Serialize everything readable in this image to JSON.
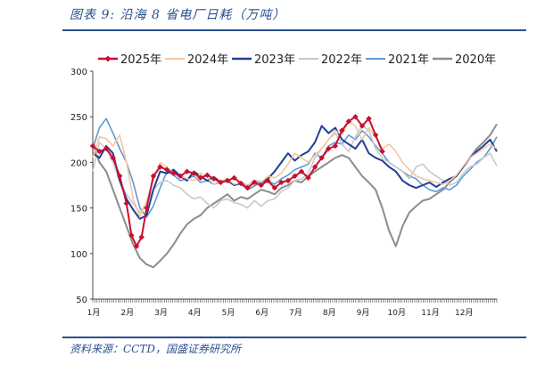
{
  "title": "图表 9:  沿海 8 省电厂日耗（万吨）",
  "source": "资料来源：CCTD，国盛证券研究所",
  "chart_data": {
    "type": "line",
    "title": "沿海 8 省电厂日耗（万吨）",
    "xlabel": "",
    "ylabel": "",
    "x_ticks": [
      "1月",
      "2月",
      "3月",
      "4月",
      "5月",
      "6月",
      "7月",
      "8月",
      "9月",
      "10月",
      "11月",
      "12月"
    ],
    "xlim": [
      0,
      12
    ],
    "ylim": [
      50,
      300
    ],
    "y_ticks": [
      50,
      100,
      150,
      200,
      250,
      300
    ],
    "grid": false,
    "legend_position": "top",
    "series": [
      {
        "name": "2025年",
        "color": "#c8102e",
        "marker": "diamond",
        "width": 2,
        "x": [
          0.0,
          0.2,
          0.4,
          0.6,
          0.8,
          1.0,
          1.15,
          1.3,
          1.45,
          1.6,
          1.8,
          2.0,
          2.2,
          2.4,
          2.6,
          2.8,
          3.0,
          3.2,
          3.4,
          3.6,
          3.8,
          4.0,
          4.2,
          4.4,
          4.6,
          4.8,
          5.0,
          5.2,
          5.4,
          5.6,
          5.8,
          6.0,
          6.2,
          6.4,
          6.6,
          6.8,
          7.0,
          7.2,
          7.4,
          7.6,
          7.8,
          8.0,
          8.2,
          8.4,
          8.6
        ],
        "y": [
          218,
          212,
          215,
          205,
          185,
          155,
          120,
          108,
          118,
          150,
          185,
          195,
          192,
          188,
          185,
          190,
          188,
          183,
          186,
          182,
          178,
          180,
          183,
          177,
          172,
          178,
          175,
          180,
          172,
          178,
          180,
          185,
          190,
          183,
          195,
          205,
          215,
          218,
          235,
          245,
          250,
          240,
          248,
          230,
          212
        ]
      },
      {
        "name": "2024年",
        "color": "#f5c6a0",
        "marker": "",
        "width": 1.6,
        "x": [
          0.0,
          0.2,
          0.4,
          0.6,
          0.8,
          1.0,
          1.2,
          1.4,
          1.6,
          1.8,
          2.0,
          2.2,
          2.4,
          2.6,
          2.8,
          3.0,
          3.2,
          3.4,
          3.6,
          3.8,
          4.0,
          4.2,
          4.4,
          4.6,
          4.8,
          5.0,
          5.2,
          5.4,
          5.6,
          5.8,
          6.0,
          6.2,
          6.4,
          6.6,
          6.8,
          7.0,
          7.2,
          7.4,
          7.6,
          7.8,
          8.0,
          8.2,
          8.4,
          8.6,
          8.8,
          9.0,
          9.2,
          9.4,
          9.6,
          9.8,
          10.0,
          10.2,
          10.4,
          10.6,
          10.8,
          11.0,
          11.2,
          11.4,
          11.6,
          11.8,
          12.0
        ],
        "y": [
          205,
          228,
          226,
          218,
          230,
          200,
          160,
          140,
          158,
          180,
          200,
          195,
          188,
          185,
          182,
          180,
          188,
          184,
          176,
          180,
          182,
          176,
          178,
          174,
          180,
          178,
          185,
          183,
          188,
          198,
          210,
          205,
          200,
          208,
          215,
          225,
          235,
          230,
          245,
          240,
          225,
          238,
          228,
          215,
          220,
          212,
          200,
          192,
          185,
          182,
          180,
          178,
          176,
          180,
          186,
          196,
          205,
          210,
          215,
          220,
          215
        ]
      },
      {
        "name": "2023年",
        "color": "#1f3f99",
        "marker": "",
        "width": 2,
        "x": [
          0.0,
          0.2,
          0.4,
          0.6,
          0.8,
          1.0,
          1.2,
          1.4,
          1.6,
          1.8,
          2.0,
          2.2,
          2.4,
          2.6,
          2.8,
          3.0,
          3.2,
          3.4,
          3.6,
          3.8,
          4.0,
          4.2,
          4.4,
          4.6,
          4.8,
          5.0,
          5.2,
          5.4,
          5.6,
          5.8,
          6.0,
          6.2,
          6.4,
          6.6,
          6.8,
          7.0,
          7.2,
          7.4,
          7.6,
          7.8,
          8.0,
          8.2,
          8.4,
          8.6,
          8.8,
          9.0,
          9.2,
          9.4,
          9.6,
          9.8,
          10.0,
          10.2,
          10.4,
          10.6,
          10.8,
          11.0,
          11.2,
          11.4,
          11.6,
          11.8,
          12.0
        ],
        "y": [
          210,
          205,
          218,
          210,
          180,
          160,
          148,
          138,
          142,
          170,
          190,
          188,
          192,
          185,
          180,
          190,
          185,
          180,
          184,
          178,
          180,
          175,
          178,
          174,
          180,
          178,
          182,
          190,
          200,
          210,
          202,
          208,
          212,
          222,
          240,
          232,
          238,
          225,
          220,
          215,
          225,
          210,
          205,
          202,
          195,
          190,
          180,
          175,
          172,
          175,
          178,
          173,
          178,
          182,
          185,
          195,
          205,
          212,
          218,
          225,
          212
        ]
      },
      {
        "name": "2022年",
        "color": "#c9c9c9",
        "marker": "",
        "width": 1.6,
        "x": [
          0.0,
          0.2,
          0.4,
          0.6,
          0.8,
          1.0,
          1.2,
          1.4,
          1.6,
          1.8,
          2.0,
          2.2,
          2.4,
          2.6,
          2.8,
          3.0,
          3.2,
          3.4,
          3.6,
          3.8,
          4.0,
          4.2,
          4.4,
          4.6,
          4.8,
          5.0,
          5.2,
          5.4,
          5.6,
          5.8,
          6.0,
          6.2,
          6.4,
          6.6,
          6.8,
          7.0,
          7.2,
          7.4,
          7.6,
          7.8,
          8.0,
          8.2,
          8.4,
          8.6,
          8.8,
          9.0,
          9.2,
          9.4,
          9.6,
          9.8,
          10.0,
          10.2,
          10.4,
          10.6,
          10.8,
          11.0,
          11.2,
          11.4,
          11.6,
          11.8,
          12.0
        ],
        "y": [
          190,
          222,
          215,
          200,
          180,
          165,
          155,
          145,
          155,
          170,
          178,
          180,
          175,
          172,
          165,
          160,
          162,
          155,
          150,
          158,
          160,
          156,
          154,
          150,
          158,
          152,
          158,
          160,
          168,
          172,
          180,
          182,
          188,
          205,
          215,
          225,
          232,
          220,
          212,
          228,
          240,
          235,
          215,
          205,
          200,
          195,
          190,
          182,
          195,
          198,
          190,
          185,
          180,
          175,
          178,
          188,
          195,
          198,
          205,
          210,
          196
        ]
      },
      {
        "name": "2021年",
        "color": "#5b9bd5",
        "marker": "",
        "width": 1.6,
        "x": [
          0.0,
          0.2,
          0.4,
          0.6,
          0.8,
          1.0,
          1.2,
          1.4,
          1.6,
          1.8,
          2.0,
          2.2,
          2.4,
          2.6,
          2.8,
          3.0,
          3.2,
          3.4,
          3.6,
          3.8,
          4.0,
          4.2,
          4.4,
          4.6,
          4.8,
          5.0,
          5.2,
          5.4,
          5.6,
          5.8,
          6.0,
          6.2,
          6.4,
          6.6,
          6.8,
          7.0,
          7.2,
          7.4,
          7.6,
          7.8,
          8.0,
          8.2,
          8.4,
          8.6,
          8.8,
          9.0,
          9.2,
          9.4,
          9.6,
          9.8,
          10.0,
          10.2,
          10.4,
          10.6,
          10.8,
          11.0,
          11.2,
          11.4,
          11.6,
          11.8,
          12.0
        ],
        "y": [
          215,
          238,
          248,
          232,
          215,
          200,
          178,
          150,
          140,
          152,
          172,
          190,
          186,
          180,
          182,
          185,
          178,
          180,
          176,
          178,
          180,
          175,
          176,
          170,
          174,
          178,
          180,
          176,
          182,
          186,
          192,
          195,
          198,
          210,
          205,
          218,
          222,
          220,
          230,
          225,
          235,
          228,
          218,
          210,
          200,
          195,
          190,
          185,
          182,
          175,
          170,
          168,
          172,
          170,
          175,
          185,
          192,
          200,
          205,
          215,
          228
        ]
      },
      {
        "name": "2020年",
        "color": "#8c8c8c",
        "marker": "",
        "width": 2,
        "x": [
          0.0,
          0.2,
          0.4,
          0.6,
          0.8,
          1.0,
          1.2,
          1.4,
          1.6,
          1.8,
          2.0,
          2.2,
          2.4,
          2.6,
          2.8,
          3.0,
          3.2,
          3.4,
          3.6,
          3.8,
          4.0,
          4.2,
          4.4,
          4.6,
          4.8,
          5.0,
          5.2,
          5.4,
          5.6,
          5.8,
          6.0,
          6.2,
          6.4,
          6.6,
          6.8,
          7.0,
          7.2,
          7.4,
          7.6,
          7.8,
          8.0,
          8.2,
          8.4,
          8.6,
          8.8,
          9.0,
          9.2,
          9.4,
          9.6,
          9.8,
          10.0,
          10.2,
          10.4,
          10.6,
          10.8,
          11.0,
          11.2,
          11.4,
          11.6,
          11.8,
          12.0
        ],
        "y": [
          220,
          200,
          190,
          170,
          150,
          130,
          110,
          95,
          88,
          85,
          92,
          100,
          110,
          122,
          132,
          138,
          142,
          150,
          155,
          160,
          165,
          158,
          162,
          160,
          165,
          170,
          168,
          165,
          172,
          175,
          180,
          178,
          185,
          190,
          195,
          200,
          205,
          208,
          205,
          195,
          185,
          178,
          170,
          150,
          125,
          108,
          130,
          145,
          152,
          158,
          160,
          165,
          170,
          178,
          185,
          195,
          205,
          215,
          222,
          230,
          242
        ]
      }
    ]
  }
}
